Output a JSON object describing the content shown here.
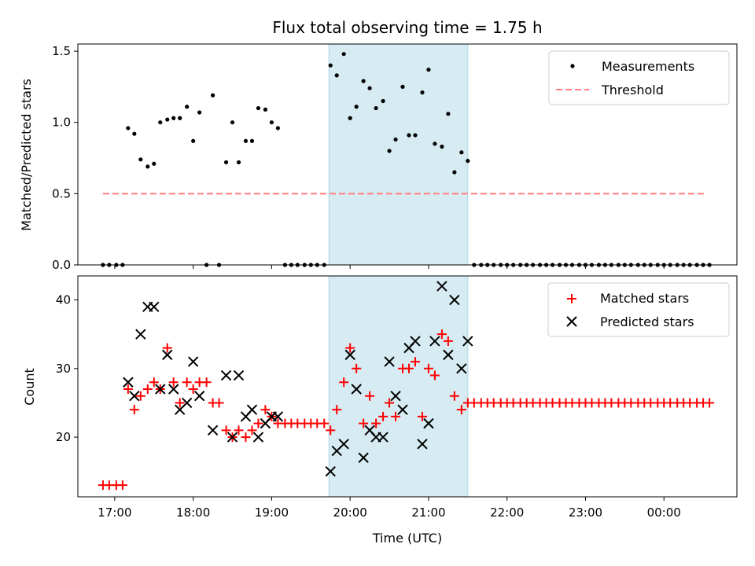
{
  "title": "Flux total observing time = 1.75 h",
  "chart_data": [
    {
      "type": "scatter",
      "ylabel": "Matched/Predicted stars",
      "ylim": [
        0,
        1.55
      ],
      "yticks": [
        "0.0",
        "0.5",
        "1.0",
        "1.5"
      ],
      "ytick_values": [
        0,
        0.5,
        1.0,
        1.5
      ],
      "xlim": [
        16.53,
        24.93
      ],
      "legend_placement": "top-right",
      "highlight_span": {
        "start": 19.73,
        "end": 21.5,
        "color": "#add8e6"
      },
      "threshold": {
        "name": "Threshold",
        "value": 0.5,
        "x": [
          16.85,
          24.53
        ],
        "color": "#ff7f7f"
      },
      "series": [
        {
          "name": "Measurements",
          "color": "#000000",
          "marker": "dot",
          "points": [
            [
              16.85,
              0
            ],
            [
              16.93,
              0
            ],
            [
              17.02,
              0
            ],
            [
              17.1,
              0
            ],
            [
              17.17,
              0.96
            ],
            [
              17.25,
              0.92
            ],
            [
              17.33,
              0.74
            ],
            [
              17.42,
              0.69
            ],
            [
              17.5,
              0.71
            ],
            [
              17.58,
              1.0
            ],
            [
              17.67,
              1.02
            ],
            [
              17.75,
              1.03
            ],
            [
              17.83,
              1.03
            ],
            [
              17.92,
              1.11
            ],
            [
              18.0,
              0.87
            ],
            [
              18.08,
              1.07
            ],
            [
              18.17,
              0
            ],
            [
              18.25,
              1.19
            ],
            [
              18.33,
              0
            ],
            [
              18.42,
              0.72
            ],
            [
              18.5,
              1.0
            ],
            [
              18.58,
              0.72
            ],
            [
              18.67,
              0.87
            ],
            [
              18.75,
              0.87
            ],
            [
              18.83,
              1.1
            ],
            [
              18.92,
              1.09
            ],
            [
              19.0,
              1.0
            ],
            [
              19.08,
              0.96
            ],
            [
              19.17,
              0
            ],
            [
              19.25,
              0
            ],
            [
              19.33,
              0
            ],
            [
              19.42,
              0
            ],
            [
              19.5,
              0
            ],
            [
              19.58,
              0
            ],
            [
              19.67,
              0
            ],
            [
              19.75,
              1.4
            ],
            [
              19.83,
              1.33
            ],
            [
              19.92,
              1.48
            ],
            [
              20.0,
              1.03
            ],
            [
              20.08,
              1.11
            ],
            [
              20.17,
              1.29
            ],
            [
              20.25,
              1.24
            ],
            [
              20.33,
              1.1
            ],
            [
              20.42,
              1.15
            ],
            [
              20.5,
              0.8
            ],
            [
              20.58,
              0.88
            ],
            [
              20.67,
              1.25
            ],
            [
              20.75,
              0.91
            ],
            [
              20.83,
              0.91
            ],
            [
              20.92,
              1.21
            ],
            [
              21.0,
              1.37
            ],
            [
              21.08,
              0.85
            ],
            [
              21.17,
              0.83
            ],
            [
              21.25,
              1.06
            ],
            [
              21.33,
              0.65
            ],
            [
              21.42,
              0.79
            ],
            [
              21.5,
              0.73
            ],
            [
              21.58,
              0
            ],
            [
              21.67,
              0
            ],
            [
              21.75,
              0
            ],
            [
              21.83,
              0
            ],
            [
              21.92,
              0
            ],
            [
              22.0,
              0
            ],
            [
              22.08,
              0
            ],
            [
              22.17,
              0
            ],
            [
              22.25,
              0
            ],
            [
              22.33,
              0
            ],
            [
              22.42,
              0
            ],
            [
              22.5,
              0
            ],
            [
              22.58,
              0
            ],
            [
              22.67,
              0
            ],
            [
              22.75,
              0
            ],
            [
              22.83,
              0
            ],
            [
              22.92,
              0
            ],
            [
              23.0,
              0
            ],
            [
              23.08,
              0
            ],
            [
              23.17,
              0
            ],
            [
              23.25,
              0
            ],
            [
              23.33,
              0
            ],
            [
              23.42,
              0
            ],
            [
              23.5,
              0
            ],
            [
              23.58,
              0
            ],
            [
              23.67,
              0
            ],
            [
              23.75,
              0
            ],
            [
              23.83,
              0
            ],
            [
              23.92,
              0
            ],
            [
              24.0,
              0
            ],
            [
              24.08,
              0
            ],
            [
              24.17,
              0
            ],
            [
              24.25,
              0
            ],
            [
              24.33,
              0
            ],
            [
              24.42,
              0
            ],
            [
              24.5,
              0
            ],
            [
              24.58,
              0
            ]
          ]
        }
      ]
    },
    {
      "type": "scatter",
      "xlabel": "Time (UTC)",
      "ylabel": "Count",
      "ylim": [
        11.3,
        43.5
      ],
      "yticks": [
        "20",
        "30",
        "40"
      ],
      "ytick_values": [
        20,
        30,
        40
      ],
      "xlim": [
        16.53,
        24.93
      ],
      "xticks": [
        "17:00",
        "18:00",
        "19:00",
        "20:00",
        "21:00",
        "22:00",
        "23:00",
        "00:00"
      ],
      "xtick_values": [
        17,
        18,
        19,
        20,
        21,
        22,
        23,
        24
      ],
      "legend_placement": "top-right",
      "highlight_span": {
        "start": 19.73,
        "end": 21.5,
        "color": "#add8e6"
      },
      "series": [
        {
          "name": "Matched stars",
          "color": "#ff0000",
          "marker": "plus",
          "points": [
            [
              16.85,
              13
            ],
            [
              16.93,
              13
            ],
            [
              17.02,
              13
            ],
            [
              17.1,
              13
            ],
            [
              17.17,
              27
            ],
            [
              17.25,
              24
            ],
            [
              17.33,
              26
            ],
            [
              17.42,
              27
            ],
            [
              17.5,
              28
            ],
            [
              17.58,
              27
            ],
            [
              17.67,
              33
            ],
            [
              17.75,
              28
            ],
            [
              17.83,
              25
            ],
            [
              17.92,
              28
            ],
            [
              18.0,
              27
            ],
            [
              18.08,
              28
            ],
            [
              18.17,
              28
            ],
            [
              18.25,
              25
            ],
            [
              18.33,
              25
            ],
            [
              18.42,
              21
            ],
            [
              18.5,
              20
            ],
            [
              18.58,
              21
            ],
            [
              18.67,
              20
            ],
            [
              18.75,
              21
            ],
            [
              18.83,
              22
            ],
            [
              18.92,
              24
            ],
            [
              19.0,
              23
            ],
            [
              19.08,
              22
            ],
            [
              19.17,
              22
            ],
            [
              19.25,
              22
            ],
            [
              19.33,
              22
            ],
            [
              19.42,
              22
            ],
            [
              19.5,
              22
            ],
            [
              19.58,
              22
            ],
            [
              19.67,
              22
            ],
            [
              19.75,
              21
            ],
            [
              19.83,
              24
            ],
            [
              19.92,
              28
            ],
            [
              20.0,
              33
            ],
            [
              20.08,
              30
            ],
            [
              20.17,
              22
            ],
            [
              20.25,
              26
            ],
            [
              20.33,
              22
            ],
            [
              20.42,
              23
            ],
            [
              20.5,
              25
            ],
            [
              20.58,
              23
            ],
            [
              20.67,
              30
            ],
            [
              20.75,
              30
            ],
            [
              20.83,
              31
            ],
            [
              20.92,
              23
            ],
            [
              21.0,
              30
            ],
            [
              21.08,
              29
            ],
            [
              21.17,
              35
            ],
            [
              21.25,
              34
            ],
            [
              21.33,
              26
            ],
            [
              21.42,
              24
            ],
            [
              21.5,
              25
            ],
            [
              21.58,
              25
            ],
            [
              21.67,
              25
            ],
            [
              21.75,
              25
            ],
            [
              21.83,
              25
            ],
            [
              21.92,
              25
            ],
            [
              22.0,
              25
            ],
            [
              22.08,
              25
            ],
            [
              22.17,
              25
            ],
            [
              22.25,
              25
            ],
            [
              22.33,
              25
            ],
            [
              22.42,
              25
            ],
            [
              22.5,
              25
            ],
            [
              22.58,
              25
            ],
            [
              22.67,
              25
            ],
            [
              22.75,
              25
            ],
            [
              22.83,
              25
            ],
            [
              22.92,
              25
            ],
            [
              23.0,
              25
            ],
            [
              23.08,
              25
            ],
            [
              23.17,
              25
            ],
            [
              23.25,
              25
            ],
            [
              23.33,
              25
            ],
            [
              23.42,
              25
            ],
            [
              23.5,
              25
            ],
            [
              23.58,
              25
            ],
            [
              23.67,
              25
            ],
            [
              23.75,
              25
            ],
            [
              23.83,
              25
            ],
            [
              23.92,
              25
            ],
            [
              24.0,
              25
            ],
            [
              24.08,
              25
            ],
            [
              24.17,
              25
            ],
            [
              24.25,
              25
            ],
            [
              24.33,
              25
            ],
            [
              24.42,
              25
            ],
            [
              24.5,
              25
            ],
            [
              24.58,
              25
            ]
          ]
        },
        {
          "name": "Predicted stars",
          "color": "#000000",
          "marker": "x",
          "points": [
            [
              17.17,
              28
            ],
            [
              17.25,
              26
            ],
            [
              17.33,
              35
            ],
            [
              17.42,
              39
            ],
            [
              17.5,
              39
            ],
            [
              17.58,
              27
            ],
            [
              17.67,
              32
            ],
            [
              17.75,
              27
            ],
            [
              17.83,
              24
            ],
            [
              17.92,
              25
            ],
            [
              18.0,
              31
            ],
            [
              18.08,
              26
            ],
            [
              18.25,
              21
            ],
            [
              18.42,
              29
            ],
            [
              18.5,
              20
            ],
            [
              18.58,
              29
            ],
            [
              18.67,
              23
            ],
            [
              18.75,
              24
            ],
            [
              18.83,
              20
            ],
            [
              18.92,
              22
            ],
            [
              19.0,
              23
            ],
            [
              19.08,
              23
            ],
            [
              19.75,
              15
            ],
            [
              19.83,
              18
            ],
            [
              19.92,
              19
            ],
            [
              20.0,
              32
            ],
            [
              20.08,
              27
            ],
            [
              20.17,
              17
            ],
            [
              20.25,
              21
            ],
            [
              20.33,
              20
            ],
            [
              20.42,
              20
            ],
            [
              20.5,
              31
            ],
            [
              20.58,
              26
            ],
            [
              20.67,
              24
            ],
            [
              20.75,
              33
            ],
            [
              20.83,
              34
            ],
            [
              20.92,
              19
            ],
            [
              21.0,
              22
            ],
            [
              21.08,
              34
            ],
            [
              21.17,
              42
            ],
            [
              21.25,
              32
            ],
            [
              21.33,
              40
            ],
            [
              21.42,
              30
            ],
            [
              21.5,
              34
            ]
          ]
        }
      ]
    }
  ]
}
